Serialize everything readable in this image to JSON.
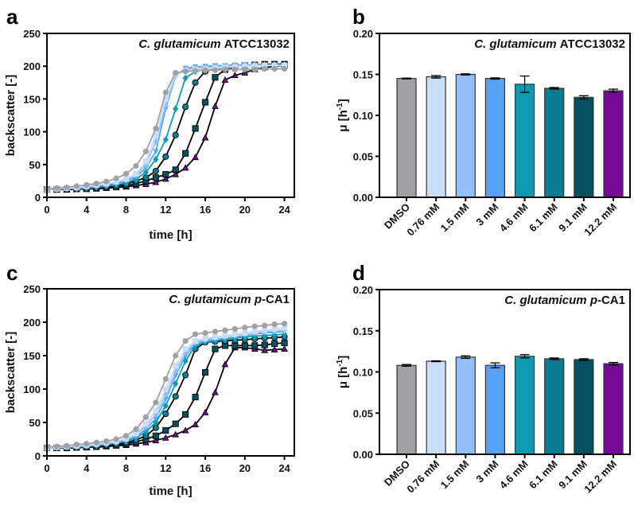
{
  "chart_data": [
    {
      "panel": "a",
      "type": "line",
      "title": {
        "species": "C. glutamicum",
        "strain_italic": "",
        "strain": "ATCC13032"
      },
      "xlabel": "time [h]",
      "ylabel": "backscatter [-]",
      "xlim": [
        0,
        25
      ],
      "ylim": [
        0,
        250
      ],
      "xticks": [
        0,
        4,
        8,
        12,
        16,
        20,
        24
      ],
      "yticks": [
        0,
        50,
        100,
        150,
        200,
        250
      ],
      "x": [
        0,
        1,
        2,
        3,
        4,
        5,
        6,
        7,
        8,
        9,
        10,
        11,
        12,
        13,
        14,
        15,
        16,
        17,
        18,
        19,
        20,
        21,
        22,
        23,
        24
      ],
      "series": [
        {
          "name": "DMSO",
          "values": [
            13,
            14,
            15,
            17,
            19,
            21,
            24,
            29,
            36,
            48,
            70,
            105,
            160,
            190,
            192,
            193,
            194,
            194,
            195,
            195,
            195,
            195,
            196,
            196,
            196
          ]
        },
        {
          "name": "0.76 mM",
          "values": [
            12,
            13,
            14,
            15,
            17,
            19,
            21,
            24,
            28,
            36,
            55,
            95,
            150,
            188,
            193,
            195,
            196,
            197,
            198,
            199,
            200,
            200,
            201,
            201,
            201
          ]
        },
        {
          "name": "1.5 mM",
          "values": [
            12,
            13,
            14,
            15,
            16,
            18,
            20,
            23,
            27,
            34,
            50,
            85,
            140,
            185,
            195,
            197,
            198,
            199,
            200,
            201,
            201,
            202,
            202,
            202,
            202
          ]
        },
        {
          "name": "3 mM",
          "values": [
            12,
            13,
            13,
            14,
            15,
            17,
            19,
            21,
            25,
            31,
            45,
            70,
            135,
            185,
            197,
            199,
            200,
            201,
            201,
            202,
            202,
            202,
            202,
            202,
            202
          ]
        },
        {
          "name": "4.6 mM",
          "values": [
            12,
            12,
            13,
            13,
            14,
            15,
            17,
            19,
            22,
            28,
            38,
            58,
            88,
            135,
            182,
            192,
            195,
            197,
            198,
            199,
            200,
            201,
            201,
            202,
            202
          ]
        },
        {
          "name": "6.1 mM",
          "values": [
            12,
            12,
            12,
            13,
            14,
            15,
            16,
            18,
            20,
            25,
            30,
            40,
            62,
            95,
            138,
            175,
            192,
            196,
            198,
            200,
            201,
            202,
            202,
            203,
            203
          ]
        },
        {
          "name": "9.1 mM",
          "values": [
            12,
            12,
            12,
            13,
            13,
            14,
            15,
            16,
            18,
            21,
            25,
            30,
            35,
            42,
            67,
            105,
            145,
            183,
            195,
            199,
            201,
            202,
            203,
            203,
            203
          ]
        },
        {
          "name": "12.2 mM",
          "values": [
            12,
            12,
            12,
            12,
            13,
            13,
            14,
            15,
            16,
            18,
            20,
            23,
            28,
            35,
            45,
            61,
            91,
            139,
            179,
            186,
            190,
            195,
            198,
            200,
            201
          ]
        }
      ]
    },
    {
      "panel": "b",
      "type": "bar",
      "title": {
        "species": "C. glutamicum",
        "strain_italic": "",
        "strain": "ATCC13032"
      },
      "ylabel": {
        "main": "μ [h",
        "sup": "-1",
        "close": "]"
      },
      "ylim": [
        0,
        0.2
      ],
      "yticks": [
        "0.00",
        "0.05",
        "0.10",
        "0.15",
        "0.20"
      ],
      "categories": [
        "DMSO",
        "0.76 mM",
        "1.5 mM",
        "3 mM",
        "4.6 mM",
        "6.1 mM",
        "9.1 mM",
        "12.2 mM"
      ],
      "values": [
        0.145,
        0.147,
        0.15,
        0.145,
        0.138,
        0.133,
        0.122,
        0.13
      ],
      "errors": [
        0.0005,
        0.0015,
        0.0007,
        0.0008,
        0.01,
        0.001,
        0.002,
        0.002
      ]
    },
    {
      "panel": "c",
      "type": "line",
      "title": {
        "species": "C. glutamicum",
        "strain_italic": "p",
        "strain": "-CA1"
      },
      "xlabel": "time [h]",
      "ylabel": "backscatter [-]",
      "xlim": [
        0,
        25
      ],
      "ylim": [
        0,
        250
      ],
      "xticks": [
        0,
        4,
        8,
        12,
        16,
        20,
        24
      ],
      "yticks": [
        0,
        50,
        100,
        150,
        200,
        250
      ],
      "x": [
        0,
        1,
        2,
        3,
        4,
        5,
        6,
        7,
        8,
        9,
        10,
        11,
        12,
        13,
        14,
        15,
        16,
        17,
        18,
        19,
        20,
        21,
        22,
        23,
        24
      ],
      "series": [
        {
          "name": "DMSO",
          "values": [
            13,
            14,
            15,
            17,
            18,
            20,
            22,
            25,
            30,
            40,
            58,
            80,
            115,
            150,
            172,
            182,
            184,
            186,
            188,
            190,
            192,
            194,
            195,
            197,
            198
          ]
        },
        {
          "name": "0.76 mM",
          "values": [
            12,
            13,
            14,
            15,
            16,
            18,
            20,
            22,
            26,
            34,
            48,
            68,
            100,
            135,
            160,
            172,
            176,
            178,
            180,
            182,
            184,
            186,
            188,
            190,
            192
          ]
        },
        {
          "name": "1.5 mM",
          "values": [
            12,
            13,
            14,
            15,
            16,
            17,
            19,
            21,
            25,
            32,
            45,
            62,
            92,
            127,
            155,
            170,
            174,
            177,
            179,
            181,
            183,
            185,
            186,
            187,
            188
          ]
        },
        {
          "name": "3 mM",
          "values": [
            12,
            12,
            13,
            14,
            15,
            16,
            18,
            20,
            23,
            29,
            40,
            56,
            85,
            120,
            150,
            168,
            172,
            174,
            176,
            178,
            180,
            182,
            184,
            185,
            186
          ]
        },
        {
          "name": "4.6 mM",
          "values": [
            12,
            12,
            13,
            13,
            14,
            15,
            17,
            19,
            22,
            27,
            36,
            50,
            75,
            108,
            142,
            165,
            170,
            172,
            174,
            176,
            178,
            179,
            180,
            181,
            182
          ]
        },
        {
          "name": "6.1 mM",
          "values": [
            12,
            12,
            12,
            13,
            14,
            15,
            16,
            18,
            20,
            24,
            30,
            42,
            63,
            89,
            121,
            160,
            170,
            171,
            172,
            173,
            174,
            175,
            176,
            177,
            178
          ]
        },
        {
          "name": "9.1 mM",
          "values": [
            12,
            12,
            12,
            13,
            13,
            14,
            15,
            16,
            18,
            21,
            25,
            30,
            38,
            48,
            62,
            88,
            125,
            160,
            165,
            165,
            165,
            165,
            166,
            168,
            169
          ]
        },
        {
          "name": "12.2 mM",
          "values": [
            12,
            12,
            12,
            12,
            13,
            13,
            14,
            15,
            16,
            18,
            20,
            23,
            27,
            32,
            38,
            47,
            65,
            95,
            137,
            162,
            162,
            160,
            158,
            159,
            160
          ]
        }
      ]
    },
    {
      "panel": "d",
      "type": "bar",
      "title": {
        "species": "C. glutamicum",
        "strain_italic": "p",
        "strain": "-CA1"
      },
      "ylabel": {
        "main": "μ [h",
        "sup": "-1",
        "close": "]"
      },
      "ylim": [
        0,
        0.2
      ],
      "yticks": [
        "0.00",
        "0.05",
        "0.10",
        "0.15",
        "0.20"
      ],
      "categories": [
        "DMSO",
        "0.76 mM",
        "1.5 mM",
        "3 mM",
        "4.6 mM",
        "6.1 mM",
        "9.1 mM",
        "12.2 mM"
      ],
      "values": [
        0.108,
        0.113,
        0.118,
        0.108,
        0.119,
        0.116,
        0.115,
        0.11
      ],
      "errors": [
        0.001,
        0.0005,
        0.0015,
        0.003,
        0.002,
        0.001,
        0.001,
        0.0015
      ]
    }
  ],
  "colors": [
    "#a0a0a5",
    "#c8dff7",
    "#93c0f7",
    "#56a2f7",
    "#0e9ab2",
    "#0b7d90",
    "#06505f",
    "#760a96"
  ],
  "markers": [
    "circle",
    "square",
    "diamond",
    "triangle-down",
    "diamond",
    "circle",
    "square",
    "triangle-up"
  ]
}
